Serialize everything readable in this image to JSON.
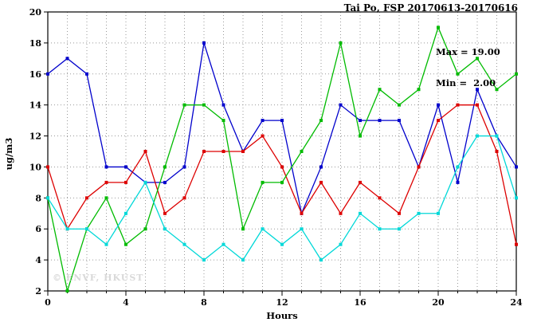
{
  "header": {
    "title": "Tai Po, FSP 20170613-20170616"
  },
  "watermark": "© ENVF, HKUST",
  "chart_data": {
    "type": "line",
    "title": "Tai Po, FSP 20170613-20170616",
    "xlabel": "Hours",
    "ylabel": "ug/m3",
    "xlim": [
      0,
      24
    ],
    "ylim": [
      2,
      20
    ],
    "xticks": [
      0,
      4,
      8,
      12,
      16,
      20,
      24
    ],
    "yticks": [
      2,
      4,
      6,
      8,
      10,
      12,
      14,
      16,
      18,
      20
    ],
    "grid": true,
    "annotations": {
      "max_label": "Max = 19.00",
      "min_label": "Min =  2.00"
    },
    "x": [
      0,
      1,
      2,
      3,
      4,
      5,
      6,
      7,
      8,
      9,
      10,
      11,
      12,
      13,
      14,
      15,
      16,
      17,
      18,
      19,
      20,
      21,
      22,
      23,
      24
    ],
    "series": [
      {
        "name": "series-blue",
        "color": "#0000cc",
        "values": [
          16,
          17,
          16,
          10,
          10,
          9,
          9,
          10,
          18,
          14,
          11,
          13,
          13,
          7,
          10,
          14,
          13,
          13,
          13,
          10,
          14,
          9,
          15,
          12,
          10
        ]
      },
      {
        "name": "series-red",
        "color": "#dd0000",
        "values": [
          10,
          6,
          8,
          9,
          9,
          11,
          7,
          8,
          11,
          11,
          11,
          12,
          10,
          7,
          9,
          7,
          9,
          8,
          7,
          10,
          13,
          14,
          14,
          11,
          5
        ]
      },
      {
        "name": "series-green",
        "color": "#00bb00",
        "values": [
          8,
          2,
          6,
          8,
          5,
          6,
          10,
          14,
          14,
          13,
          6,
          9,
          9,
          11,
          13,
          18,
          12,
          15,
          14,
          15,
          19,
          16,
          17,
          15,
          16
        ]
      },
      {
        "name": "series-cyan",
        "color": "#00d8d8",
        "values": [
          8,
          6,
          6,
          5,
          7,
          9,
          6,
          5,
          4,
          5,
          4,
          6,
          5,
          6,
          4,
          5,
          7,
          6,
          6,
          7,
          7,
          10,
          12,
          12,
          8
        ]
      }
    ]
  }
}
